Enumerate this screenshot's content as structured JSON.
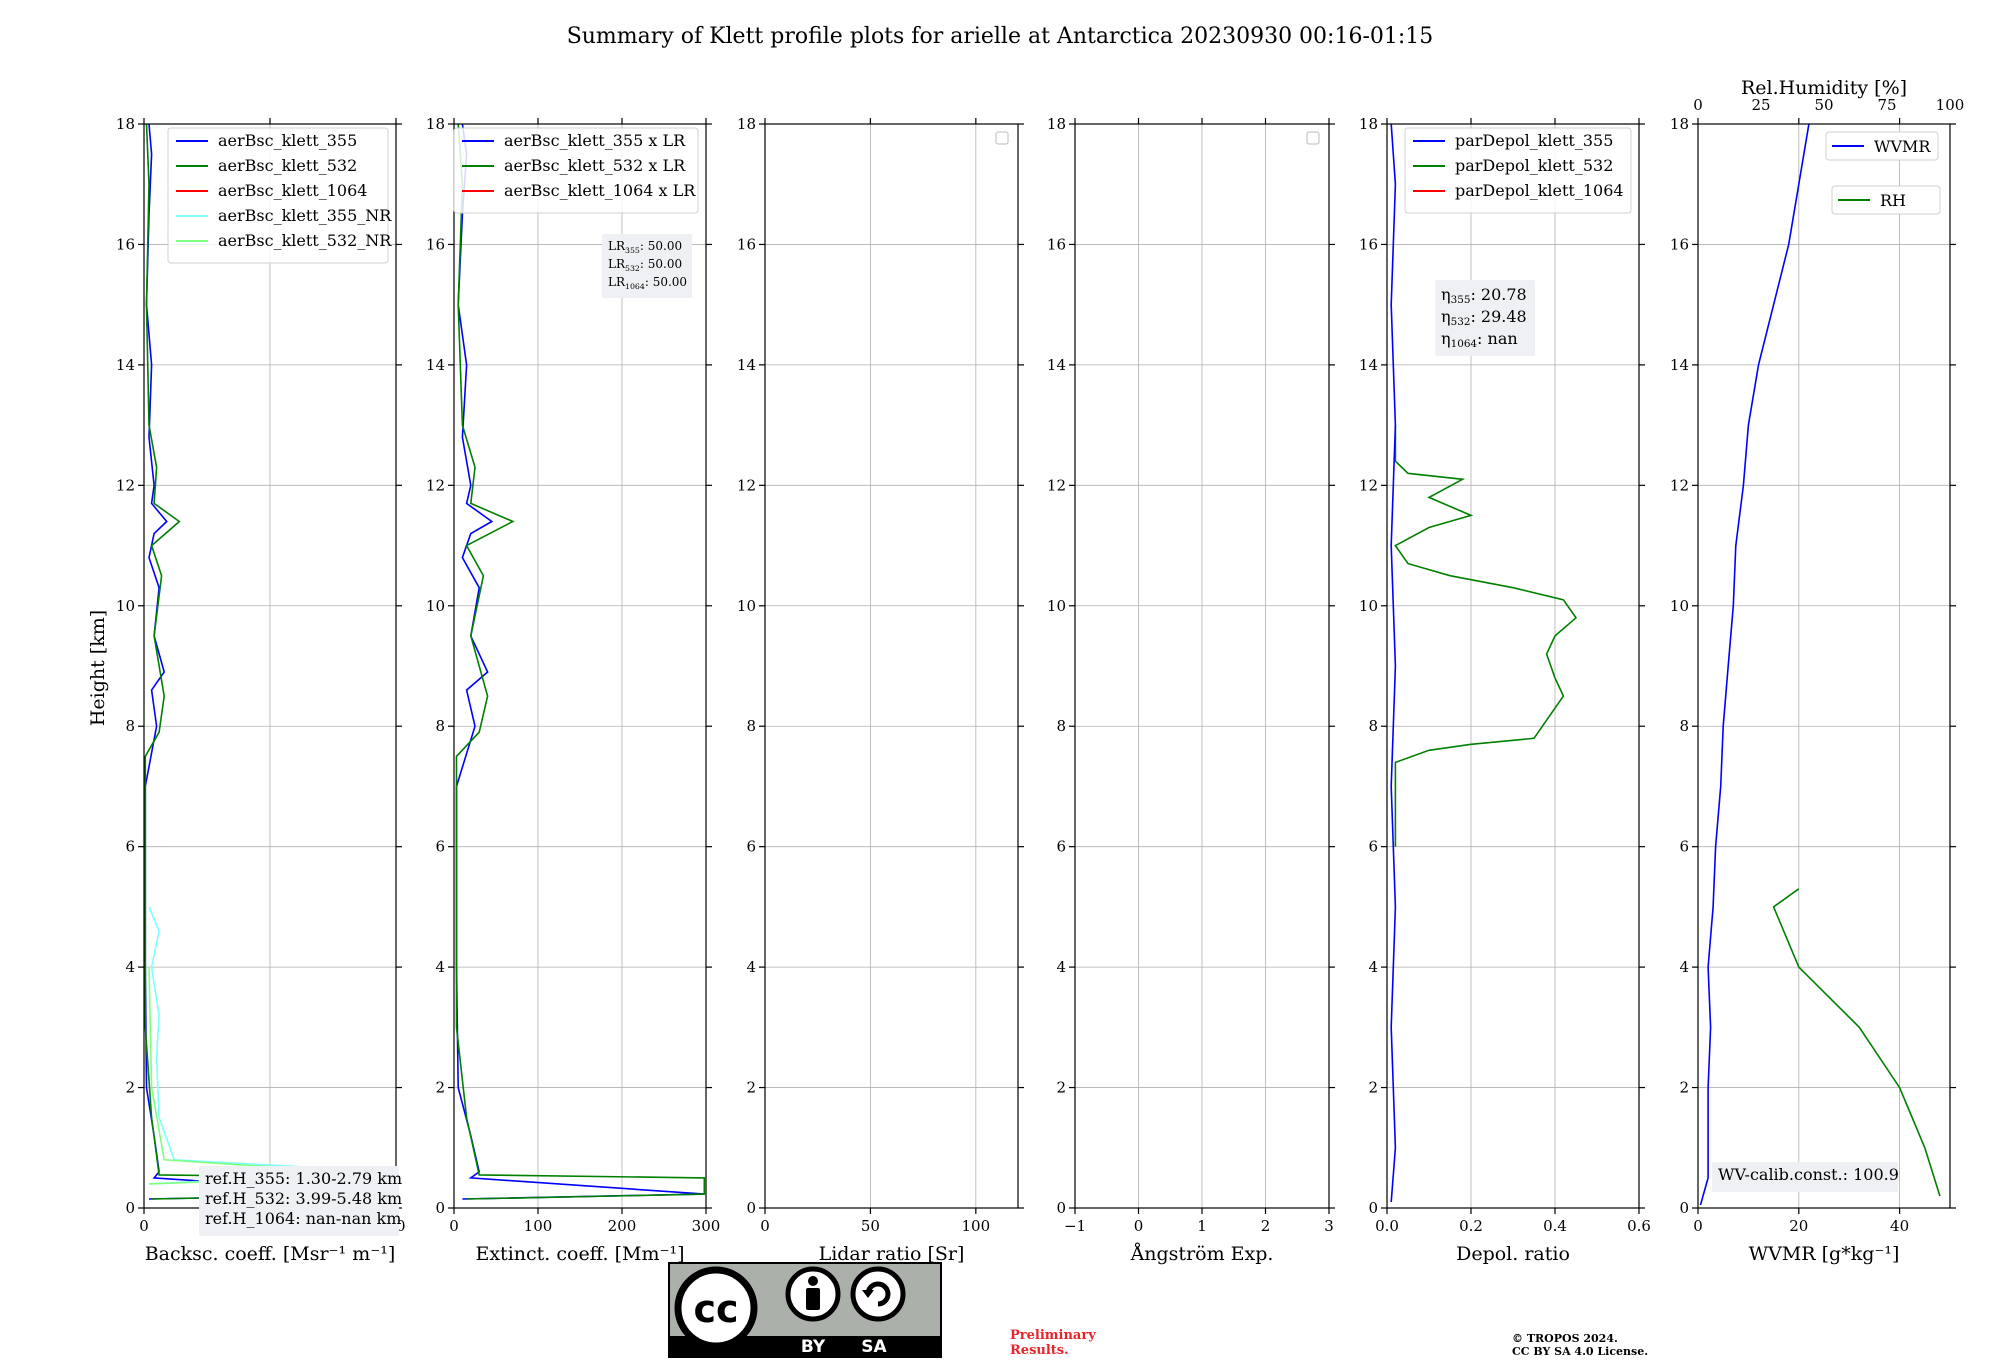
{
  "title": "Summary of Klett profile plots for arielle at Antarctica 20230930 00:16-01:15",
  "colors": {
    "blue": "#0000ff",
    "green": "#008000",
    "red": "#ff0000",
    "cyan": "#7fffff",
    "lightgreen": "#80ff80",
    "prelim": "#e8242a"
  },
  "ylabel": "Height [km]",
  "yticks": [
    "0",
    "2",
    "4",
    "6",
    "8",
    "10",
    "12",
    "14",
    "16",
    "18"
  ],
  "chart_data": [
    {
      "id": "bsc",
      "type": "line",
      "xlabel": "Backsc. coeff. [Msr⁻¹ m⁻¹]",
      "xlim": [
        0,
        10
      ],
      "ylim": [
        0,
        18
      ],
      "xticks": [
        "0",
        "5",
        "10"
      ],
      "legend": [
        "aerBsc_klett_355",
        "aerBsc_klett_532",
        "aerBsc_klett_1064",
        "aerBsc_klett_355_NR",
        "aerBsc_klett_532_NR"
      ],
      "legend_placement": "upper-right",
      "series": [
        {
          "name": "aerBsc_klett_355",
          "color": "blue",
          "points": [
            [
              0.2,
              0.15
            ],
            [
              9.9,
              0.23
            ],
            [
              0.4,
              0.5
            ],
            [
              0.6,
              0.6
            ],
            [
              0.4,
              1.2
            ],
            [
              0.1,
              2
            ],
            [
              0.05,
              4
            ],
            [
              0.05,
              7
            ],
            [
              0.5,
              8
            ],
            [
              0.3,
              8.6
            ],
            [
              0.8,
              8.9
            ],
            [
              0.4,
              9.5
            ],
            [
              0.6,
              10.3
            ],
            [
              0.2,
              10.8
            ],
            [
              0.4,
              11.2
            ],
            [
              0.9,
              11.4
            ],
            [
              0.3,
              11.7
            ],
            [
              0.4,
              12
            ],
            [
              0.2,
              12.8
            ],
            [
              0.3,
              14
            ],
            [
              0.1,
              15
            ],
            [
              0.2,
              16.5
            ],
            [
              0.3,
              17.5
            ],
            [
              0.2,
              18
            ]
          ]
        },
        {
          "name": "aerBsc_klett_532",
          "color": "green",
          "points": [
            [
              0.3,
              0.15
            ],
            [
              9.9,
              0.23
            ],
            [
              9.9,
              0.5
            ],
            [
              0.6,
              0.55
            ],
            [
              0.3,
              1.5
            ],
            [
              0.05,
              3
            ],
            [
              0.05,
              7.5
            ],
            [
              0.6,
              7.9
            ],
            [
              0.8,
              8.5
            ],
            [
              0.4,
              9.5
            ],
            [
              0.7,
              10.5
            ],
            [
              0.3,
              11
            ],
            [
              1.4,
              11.4
            ],
            [
              0.4,
              11.7
            ],
            [
              0.5,
              12.3
            ],
            [
              0.2,
              13
            ],
            [
              0.1,
              15
            ],
            [
              0.2,
              17
            ],
            [
              0.1,
              18
            ]
          ]
        },
        {
          "name": "aerBsc_klett_355_NR",
          "color": "cyan",
          "points": [
            [
              0.2,
              0.4
            ],
            [
              9.9,
              0.6
            ],
            [
              1.2,
              0.8
            ],
            [
              0.6,
              1.5
            ],
            [
              0.5,
              2.5
            ],
            [
              0.6,
              3.2
            ],
            [
              0.3,
              4
            ],
            [
              0.6,
              4.6
            ],
            [
              0.2,
              5
            ]
          ]
        },
        {
          "name": "aerBsc_klett_532_NR",
          "color": "lightgreen",
          "points": [
            [
              0.2,
              0.4
            ],
            [
              9.9,
              0.55
            ],
            [
              0.8,
              0.8
            ],
            [
              0.3,
              2
            ],
            [
              0.2,
              4
            ]
          ]
        }
      ],
      "notes": [
        "ref.H_355: 1.30-2.79 km",
        "ref.H_532: 3.99-5.48 km",
        "ref.H_1064: nan-nan km"
      ]
    },
    {
      "id": "ext",
      "type": "line",
      "xlabel": "Extinct. coeff. [Mm⁻¹]",
      "xlim": [
        0,
        300
      ],
      "ylim": [
        0,
        18
      ],
      "xticks": [
        "0",
        "100",
        "200",
        "300"
      ],
      "legend": [
        "aerBsc_klett_355 x LR",
        "aerBsc_klett_532 x LR",
        "aerBsc_klett_1064 x LR"
      ],
      "legend_placement": "upper-right",
      "series": [
        {
          "name": "aerBsc_klett_355 x LR",
          "color": "blue",
          "points": [
            [
              10,
              0.15
            ],
            [
              298,
              0.23
            ],
            [
              20,
              0.5
            ],
            [
              30,
              0.6
            ],
            [
              20,
              1.2
            ],
            [
              5,
              2
            ],
            [
              3,
              4
            ],
            [
              3,
              7
            ],
            [
              25,
              8
            ],
            [
              15,
              8.6
            ],
            [
              40,
              8.9
            ],
            [
              20,
              9.5
            ],
            [
              30,
              10.3
            ],
            [
              10,
              10.8
            ],
            [
              20,
              11.2
            ],
            [
              45,
              11.4
            ],
            [
              15,
              11.7
            ],
            [
              20,
              12
            ],
            [
              10,
              12.8
            ],
            [
              15,
              14
            ],
            [
              5,
              15
            ],
            [
              10,
              16.5
            ],
            [
              15,
              17.5
            ],
            [
              10,
              18
            ]
          ]
        },
        {
          "name": "aerBsc_klett_532 x LR",
          "color": "green",
          "points": [
            [
              15,
              0.15
            ],
            [
              298,
              0.23
            ],
            [
              298,
              0.5
            ],
            [
              30,
              0.55
            ],
            [
              15,
              1.5
            ],
            [
              3,
              3
            ],
            [
              3,
              7.5
            ],
            [
              30,
              7.9
            ],
            [
              40,
              8.5
            ],
            [
              20,
              9.5
            ],
            [
              35,
              10.5
            ],
            [
              15,
              11
            ],
            [
              70,
              11.4
            ],
            [
              20,
              11.7
            ],
            [
              25,
              12.3
            ],
            [
              10,
              13
            ],
            [
              5,
              15
            ],
            [
              10,
              17
            ],
            [
              5,
              18
            ]
          ]
        }
      ],
      "notes": [
        "LR355: 50.00",
        "LR532: 50.00",
        "LR1064: 50.00"
      ]
    },
    {
      "id": "lr",
      "type": "line",
      "xlabel": "Lidar ratio [Sr]",
      "xlim": [
        0,
        120
      ],
      "ylim": [
        0,
        18
      ],
      "xticks": [
        "0",
        "50",
        "100"
      ],
      "series": []
    },
    {
      "id": "ang",
      "type": "line",
      "xlabel": "Ångström Exp.",
      "xlim": [
        -1,
        3
      ],
      "ylim": [
        0,
        18
      ],
      "xticks": [
        "−1",
        "0",
        "1",
        "2",
        "3"
      ],
      "series": []
    },
    {
      "id": "depol",
      "type": "line",
      "xlabel": "Depol. ratio",
      "xlim": [
        0,
        0.6
      ],
      "ylim": [
        0,
        18
      ],
      "xticks": [
        "0.0",
        "0.2",
        "0.4",
        "0.6"
      ],
      "legend": [
        "parDepol_klett_355",
        "parDepol_klett_532",
        "parDepol_klett_1064"
      ],
      "legend_placement": "upper-right",
      "series": [
        {
          "name": "parDepol_klett_532",
          "color": "green",
          "points": [
            [
              0.02,
              6
            ],
            [
              0.02,
              7.4
            ],
            [
              0.1,
              7.6
            ],
            [
              0.2,
              7.7
            ],
            [
              0.35,
              7.8
            ],
            [
              0.38,
              8.1
            ],
            [
              0.42,
              8.5
            ],
            [
              0.4,
              8.8
            ],
            [
              0.38,
              9.2
            ],
            [
              0.4,
              9.5
            ],
            [
              0.45,
              9.8
            ],
            [
              0.42,
              10.1
            ],
            [
              0.3,
              10.3
            ],
            [
              0.15,
              10.5
            ],
            [
              0.05,
              10.7
            ],
            [
              0.02,
              11
            ],
            [
              0.1,
              11.3
            ],
            [
              0.2,
              11.5
            ],
            [
              0.1,
              11.8
            ],
            [
              0.18,
              12.1
            ],
            [
              0.05,
              12.2
            ],
            [
              0.02,
              12.4
            ],
            [
              0.02,
              13
            ]
          ]
        },
        {
          "name": "parDepol_klett_355",
          "color": "blue",
          "points": [
            [
              0.01,
              0.1
            ],
            [
              0.02,
              1
            ],
            [
              0.01,
              3
            ],
            [
              0.02,
              5
            ],
            [
              0.01,
              7
            ],
            [
              0.02,
              9
            ],
            [
              0.01,
              11
            ],
            [
              0.02,
              13
            ],
            [
              0.01,
              15
            ],
            [
              0.02,
              17
            ],
            [
              0.01,
              18
            ]
          ]
        }
      ],
      "notes": [
        "η355: 20.78",
        "η532: 29.48",
        "η1064: nan"
      ]
    },
    {
      "id": "wv",
      "type": "line",
      "xlabel": "WVMR [g*kg⁻¹]",
      "xlim": [
        0,
        50
      ],
      "ylim": [
        0,
        18
      ],
      "xticks": [
        "0",
        "20",
        "40"
      ],
      "x2label": "Rel.Humidity [%]",
      "x2lim": [
        0,
        100
      ],
      "x2ticks": [
        "0",
        "25",
        "50",
        "75",
        "100"
      ],
      "legend": [
        "WVMR",
        "RH"
      ],
      "series": [
        {
          "name": "WVMR",
          "color": "blue",
          "points": [
            [
              0.5,
              0.05
            ],
            [
              1,
              0.2
            ],
            [
              2,
              0.5
            ],
            [
              2,
              1
            ],
            [
              2,
              2
            ],
            [
              2.5,
              3
            ],
            [
              2,
              4
            ],
            [
              3,
              5
            ],
            [
              3.5,
              6
            ],
            [
              4.5,
              7
            ],
            [
              5,
              8
            ],
            [
              6,
              9
            ],
            [
              7,
              10
            ],
            [
              7.5,
              11
            ],
            [
              9,
              12
            ],
            [
              10,
              13
            ],
            [
              12,
              14
            ],
            [
              15,
              15
            ],
            [
              18,
              16
            ],
            [
              20,
              17
            ],
            [
              22,
              18
            ]
          ]
        },
        {
          "name": "RH",
          "color": "green",
          "points": [
            [
              48,
              0.2
            ],
            [
              45,
              1
            ],
            [
              40,
              2
            ],
            [
              32,
              3
            ],
            [
              20,
              4
            ],
            [
              15,
              5
            ],
            [
              20,
              5.3
            ]
          ]
        }
      ],
      "notes": [
        "WV-calib.const.: 100.9"
      ]
    }
  ],
  "badge": {
    "cc": "cc",
    "by": "BY",
    "sa": "SA"
  },
  "footer": {
    "prelim_line1": "Preliminary",
    "prelim_line2": "Results.",
    "copyright_line1": "© TROPOS 2024.",
    "copyright_line2": "CC BY SA 4.0 License."
  }
}
